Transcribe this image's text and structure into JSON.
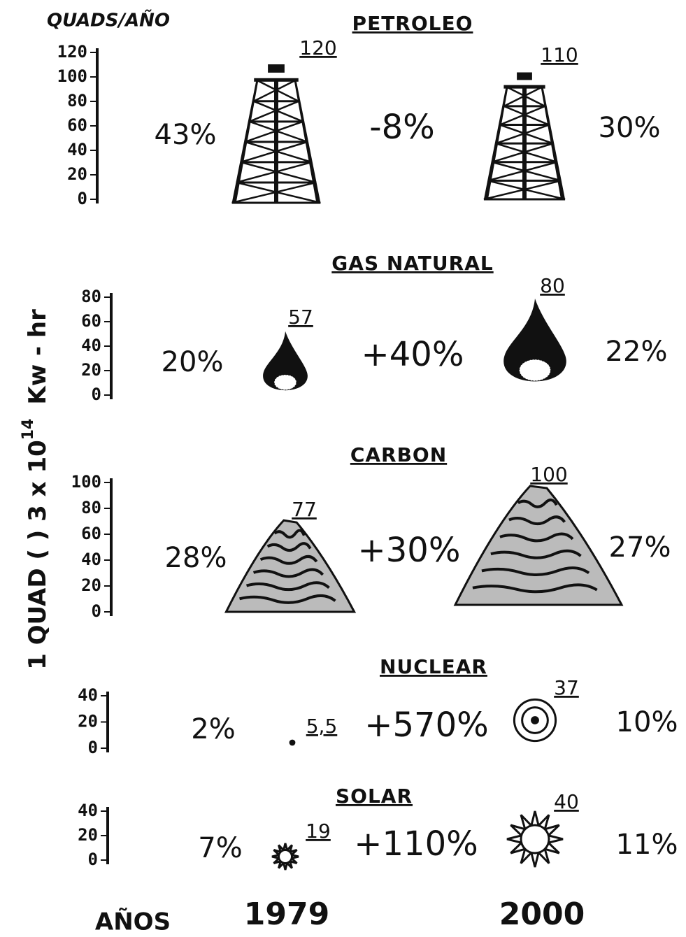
{
  "unit_label": "QUADS/AÑO",
  "side_label": {
    "text": "1 QUAD ( ) 3 x 10",
    "exponent": "14",
    "unit": "Kw - hr"
  },
  "sections": [
    {
      "title": "PETROLEO",
      "ticks": [
        120,
        100,
        80,
        60,
        40,
        20,
        0
      ],
      "share_1979": "43%",
      "value_1979": 120,
      "change": "-8%",
      "value_2000": 110,
      "share_2000": "30%"
    },
    {
      "title": "GAS NATURAL",
      "ticks": [
        80,
        60,
        40,
        20,
        0
      ],
      "share_1979": "20%",
      "value_1979": 57,
      "change": "+40%",
      "value_2000": 80,
      "share_2000": "22%"
    },
    {
      "title": "CARBON",
      "ticks": [
        100,
        80,
        60,
        40,
        20,
        0
      ],
      "share_1979": "28%",
      "value_1979": 77,
      "change": "+30%",
      "value_2000": 100,
      "share_2000": "27%"
    },
    {
      "title": "NUCLEAR",
      "ticks": [
        40,
        20,
        0
      ],
      "share_1979": "2%",
      "value_1979": 5.5,
      "value_1979_label": "5,5",
      "change": "+570%",
      "value_2000": 37,
      "share_2000": "10%"
    },
    {
      "title": "SOLAR",
      "ticks": [
        40,
        20,
        0
      ],
      "share_1979": "7%",
      "value_1979": 19,
      "change": "+110%",
      "value_2000": 40,
      "share_2000": "11%"
    }
  ],
  "footer": {
    "label": "AÑOS",
    "year_1": "1979",
    "year_2": "2000"
  }
}
